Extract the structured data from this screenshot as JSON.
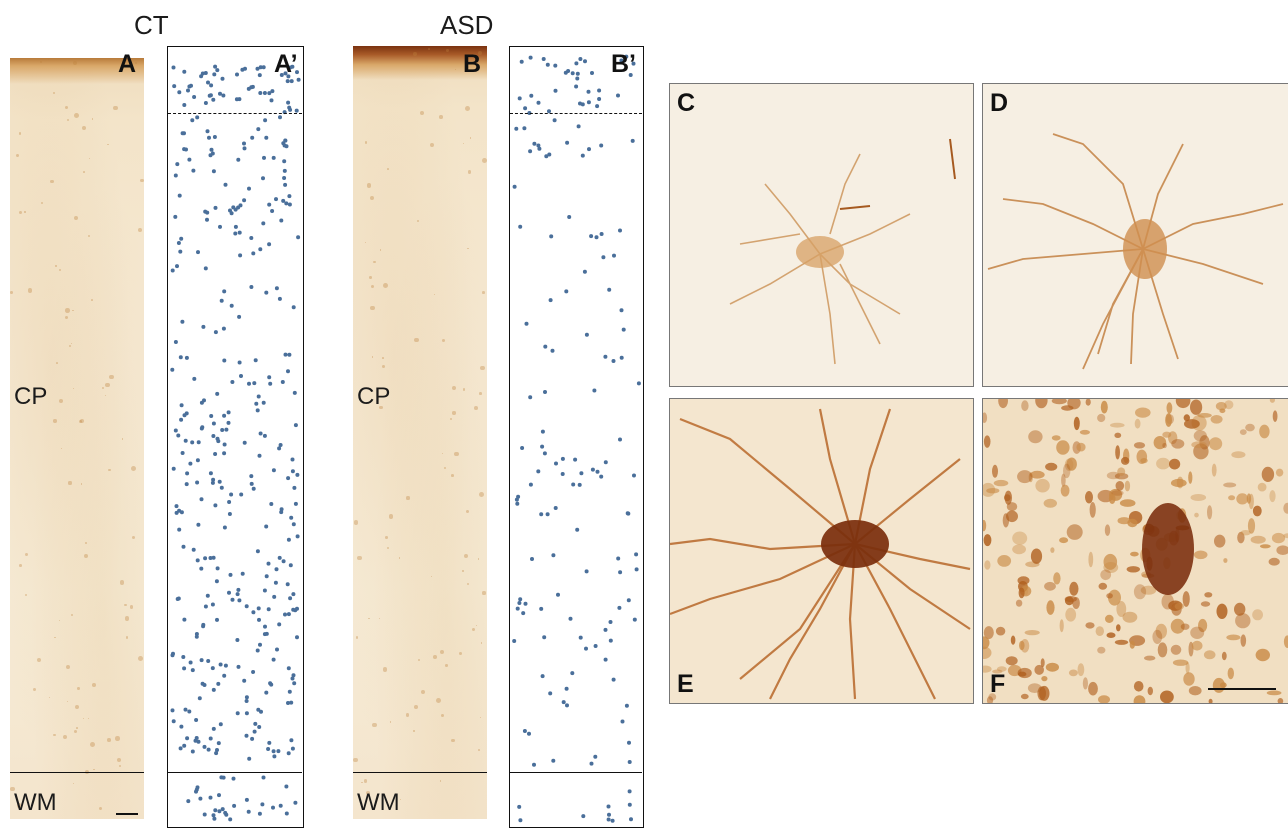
{
  "groups": {
    "ct": "CT",
    "asd": "ASD"
  },
  "panels": {
    "a": "A",
    "a_prime": "A’",
    "b": "B",
    "b_prime": "B’",
    "c": "C",
    "d": "D",
    "e": "E",
    "f": "F"
  },
  "regions": {
    "cp": "CP",
    "wm": "WM"
  },
  "colors": {
    "stain": "#b5651d",
    "dot": "#4a6f9a",
    "paper": "#f5e8d2"
  }
}
